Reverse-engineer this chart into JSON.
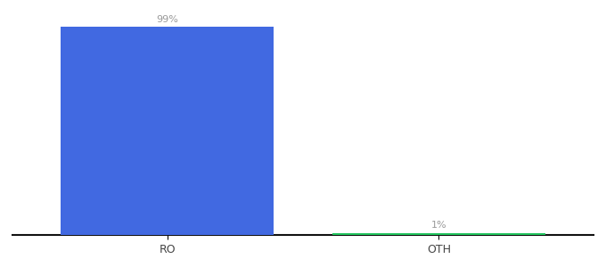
{
  "categories": [
    "RO",
    "OTH"
  ],
  "values": [
    99,
    1
  ],
  "bar_colors": [
    "#4169E1",
    "#22C55E"
  ],
  "bar_labels": [
    "99%",
    "1%"
  ],
  "background_color": "#ffffff",
  "ylim": [
    0,
    108
  ],
  "label_fontsize": 8,
  "tick_fontsize": 9,
  "bar_width": 0.55,
  "x_positions": [
    0.3,
    1.0
  ]
}
